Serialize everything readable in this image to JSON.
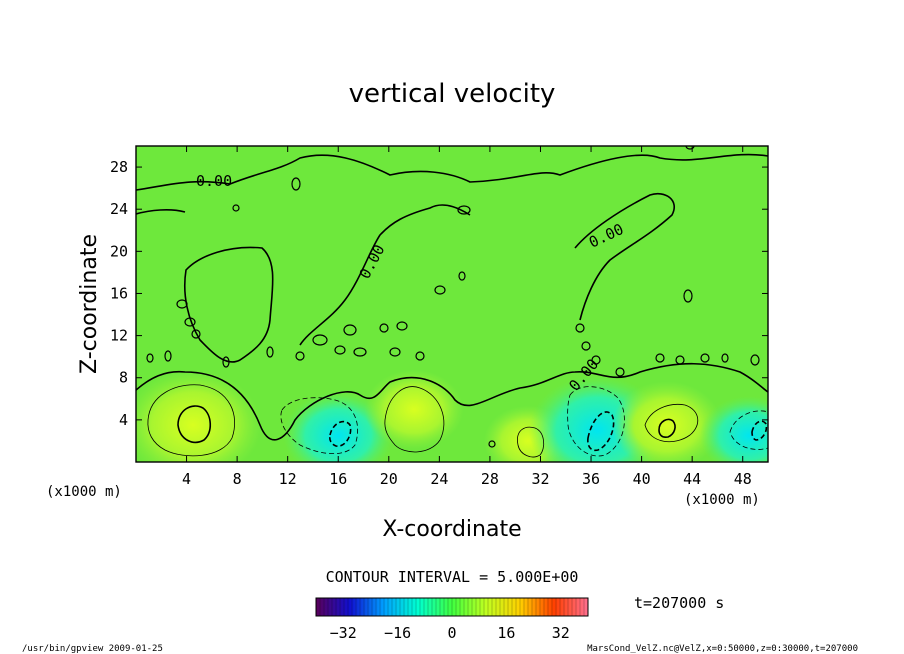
{
  "chart_data": {
    "type": "heatmap",
    "title": "vertical velocity",
    "xlabel": "X-coordinate",
    "ylabel": "Z-coordinate",
    "x_unit_left": "(x1000 m)",
    "x_unit_right": "(x1000 m)",
    "z_unit": "(x1000 m)",
    "xlim": [
      0,
      50
    ],
    "ylim": [
      0,
      30
    ],
    "x_ticks": [
      4,
      8,
      12,
      16,
      20,
      24,
      28,
      32,
      36,
      40,
      44,
      48
    ],
    "y_ticks": [
      4,
      8,
      12,
      16,
      20,
      24,
      28
    ],
    "contour_interval_text": "CONTOUR INTERVAL = 5.000E+00",
    "contour_labels": [
      "0.00",
      "0.00",
      "0.00",
      "0.00"
    ],
    "colorbar": {
      "min": -40,
      "max": 40,
      "ticks": [
        -32,
        -16,
        0,
        16,
        32
      ],
      "colors": [
        "#5a005a",
        "#1010d0",
        "#00a0ff",
        "#00ffd0",
        "#40ff40",
        "#c0ff20",
        "#ffd000",
        "#ff4000",
        "#ff7090"
      ]
    },
    "extrema": [
      {
        "kind": "updraft",
        "x": 4.5,
        "z": 3.5,
        "w": 15
      },
      {
        "kind": "downdraft",
        "x": 16,
        "z": 2.5,
        "w": -10
      },
      {
        "kind": "updraft",
        "x": 22,
        "z": 5,
        "w": 8
      },
      {
        "kind": "updraft",
        "x": 31,
        "z": 2,
        "w": 6
      },
      {
        "kind": "downdraft",
        "x": 36.5,
        "z": 3,
        "w": -15
      },
      {
        "kind": "updraft",
        "x": 42,
        "z": 3.5,
        "w": 10
      },
      {
        "kind": "downdraft",
        "x": 48.5,
        "z": 2.5,
        "w": -8
      }
    ],
    "time_label": "t=207000 s"
  },
  "footer": {
    "left": "/usr/bin/gpview  2009-01-25",
    "right": "MarsCond_VelZ.nc@VelZ,x=0:50000,z=0:30000,t=207000"
  }
}
